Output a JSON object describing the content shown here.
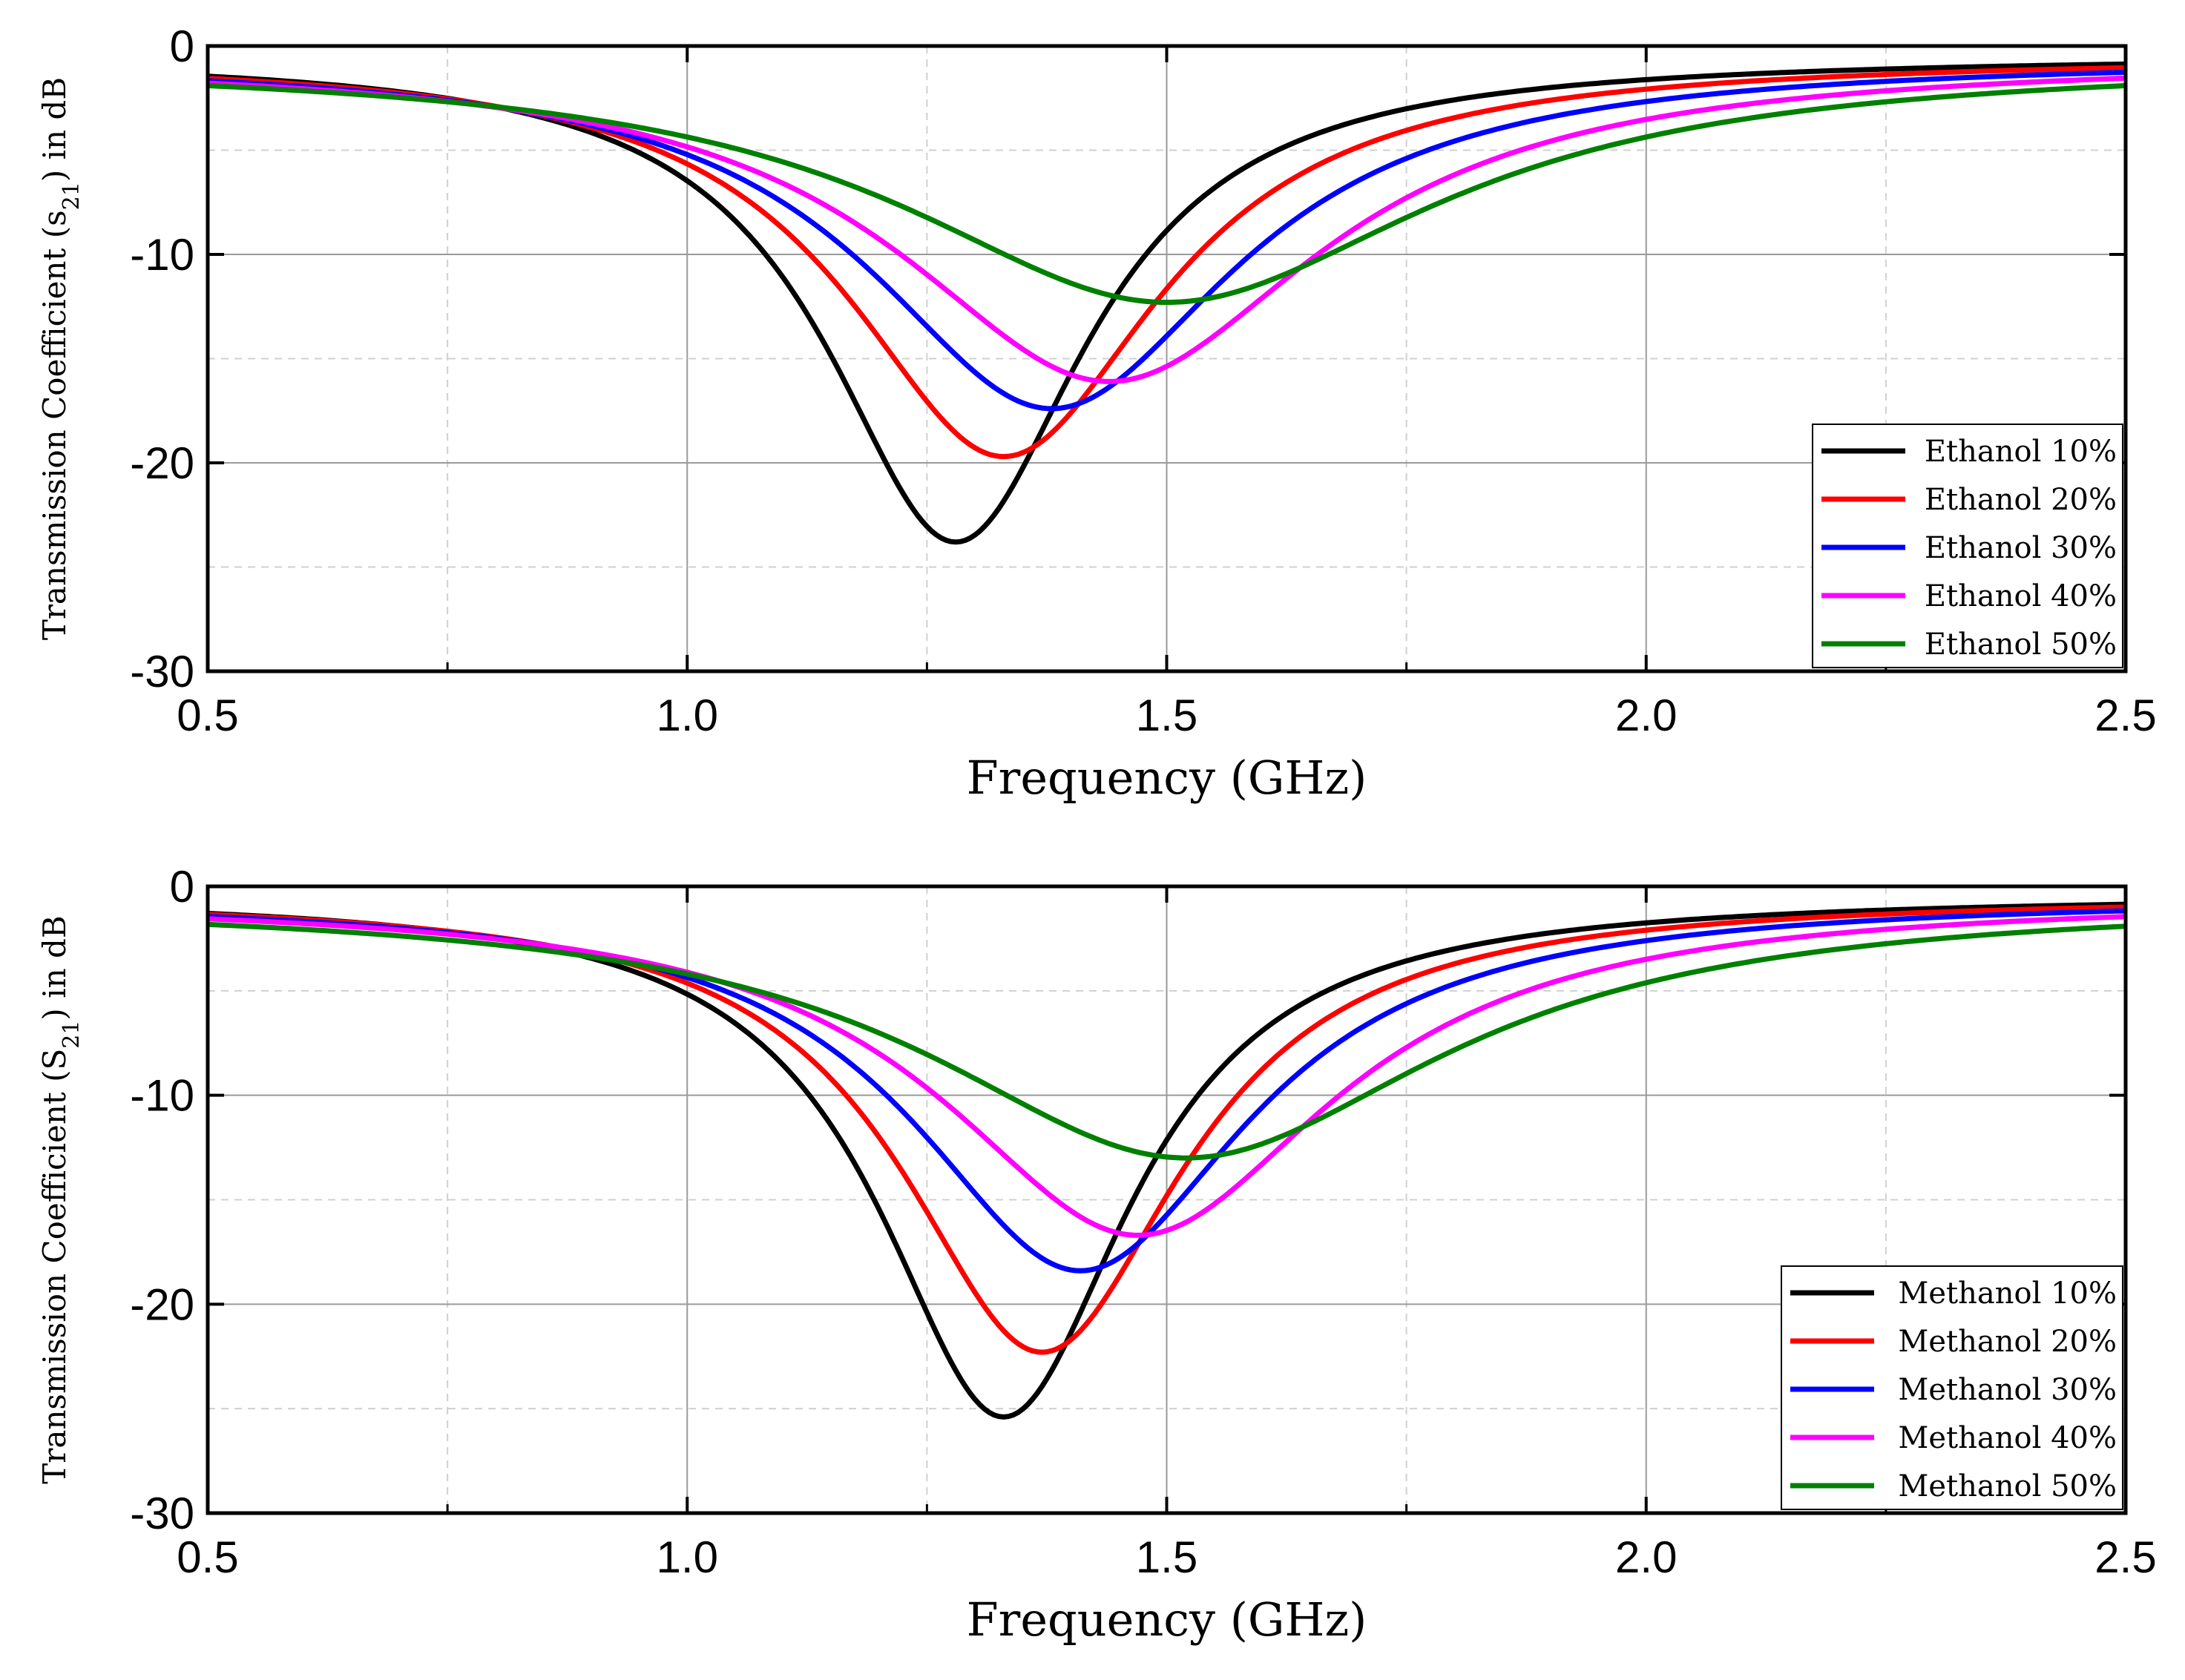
{
  "chart_data": [
    {
      "type": "line",
      "title": "",
      "xlabel": "Frequency (GHz)",
      "ylabel": "Transmission Coefficient (s21) in dB",
      "ylabel_parts": {
        "pre": "Transmission Coefficient (s",
        "sub": "21",
        "post": ") in dB"
      },
      "xlim": [
        0.5,
        2.5
      ],
      "ylim": [
        -30,
        0
      ],
      "xticks": [
        "0.5",
        "1.0",
        "1.5",
        "2.0",
        "2.5"
      ],
      "yticks": [
        "0",
        "-10",
        "-20",
        "-30"
      ],
      "grid": true,
      "legend_position": "bottom-right",
      "series": [
        {
          "name": "Ethanol 10%",
          "color": "#000000",
          "f0": 1.28,
          "min": -23.8,
          "w": 0.165,
          "base": -0.45
        },
        {
          "name": "Ethanol 20%",
          "color": "#ff0000",
          "f0": 1.33,
          "min": -19.7,
          "w": 0.2,
          "base": -0.5
        },
        {
          "name": "Ethanol 30%",
          "color": "#0000ff",
          "f0": 1.38,
          "min": -17.4,
          "w": 0.235,
          "base": -0.55
        },
        {
          "name": "Ethanol 40%",
          "color": "#ff00ff",
          "f0": 1.44,
          "min": -16.1,
          "w": 0.27,
          "base": -0.6
        },
        {
          "name": "Ethanol 50%",
          "color": "#008000",
          "f0": 1.5,
          "min": -12.3,
          "w": 0.34,
          "base": -0.7
        }
      ]
    },
    {
      "type": "line",
      "title": "",
      "xlabel": "Frequency (GHz)",
      "ylabel": "Transmission Coefficient (S21) in dB",
      "ylabel_parts": {
        "pre": "Transmission Coefficient (S",
        "sub": "21",
        "post": ") in dB"
      },
      "xlim": [
        0.5,
        2.5
      ],
      "ylim": [
        -30,
        0
      ],
      "xticks": [
        "0.5",
        "1.0",
        "1.5",
        "2.0",
        "2.5"
      ],
      "yticks": [
        "0",
        "-10",
        "-20",
        "-30"
      ],
      "grid": true,
      "legend_position": "bottom-right",
      "series": [
        {
          "name": "Methanol 10%",
          "color": "#000000",
          "f0": 1.33,
          "min": -25.4,
          "w": 0.16,
          "base": -0.4
        },
        {
          "name": "Methanol 20%",
          "color": "#ff0000",
          "f0": 1.37,
          "min": -22.3,
          "w": 0.18,
          "base": -0.45
        },
        {
          "name": "Methanol 30%",
          "color": "#0000ff",
          "f0": 1.41,
          "min": -18.4,
          "w": 0.215,
          "base": -0.5
        },
        {
          "name": "Methanol 40%",
          "color": "#ff00ff",
          "f0": 1.47,
          "min": -16.7,
          "w": 0.25,
          "base": -0.55
        },
        {
          "name": "Methanol 50%",
          "color": "#008000",
          "f0": 1.52,
          "min": -13.0,
          "w": 0.33,
          "base": -0.65
        }
      ]
    }
  ]
}
